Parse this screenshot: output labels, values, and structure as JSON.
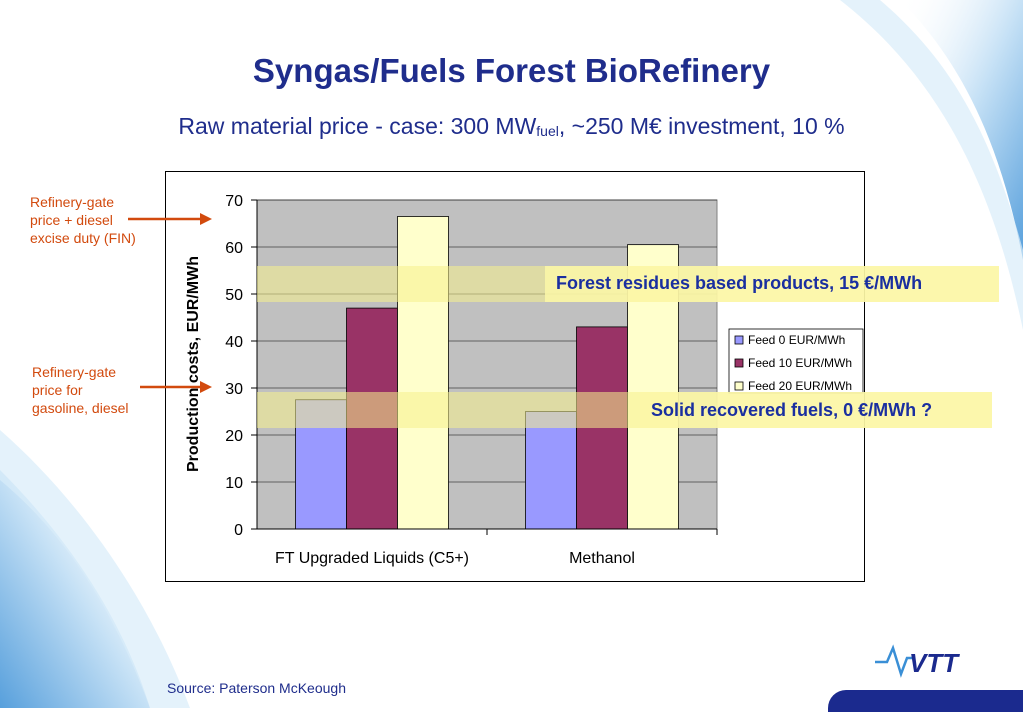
{
  "slide": {
    "title": "Syngas/Fuels Forest BioRefinery",
    "subtitle_main": "Raw material price - case: 300 MW",
    "subtitle_sub": "fuel",
    "subtitle_tail": ", ~250 M€ investment, 10 %",
    "source": "Source: Paterson McKeough",
    "logo_text": "VTT"
  },
  "annotations": {
    "upper_note": [
      "Refinery-gate",
      "price + diesel",
      "excise duty (FIN)"
    ],
    "lower_note": [
      "Refinery-gate",
      "price for",
      "gasoline, diesel"
    ],
    "upper_band": "Forest residues based products, 15 €/MWh",
    "lower_band": "Solid recovered fuels, 0 €/MWh ?",
    "arrow_color": "#d24a0e",
    "band_color": "#f5f08c"
  },
  "chart_data": {
    "type": "bar",
    "categories": [
      "FT Upgraded Liquids (C5+)",
      "Methanol"
    ],
    "series": [
      {
        "name": "Feed 0 EUR/MWh",
        "values": [
          27.5,
          25
        ],
        "color": "#9999ff"
      },
      {
        "name": "Feed 10 EUR/MWh",
        "values": [
          47,
          43
        ],
        "color": "#993366"
      },
      {
        "name": "Feed 20 EUR/MWh",
        "values": [
          66.5,
          60.5
        ],
        "color": "#ffffcc"
      }
    ],
    "ylabel": "Production costs, EUR/MWh",
    "ylim": [
      0,
      70
    ],
    "yticks": [
      0,
      10,
      20,
      30,
      40,
      50,
      60,
      70
    ],
    "plot_background": "#c0c0c0",
    "legend_position": "right"
  }
}
